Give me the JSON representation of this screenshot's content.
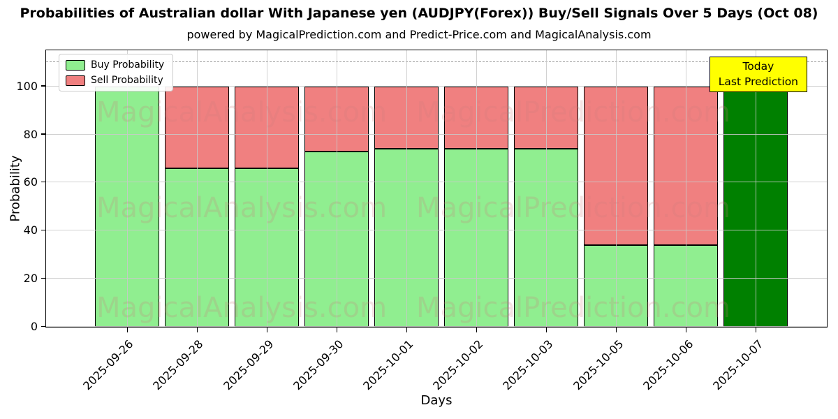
{
  "title": "Probabilities of Australian dollar With Japanese yen (AUDJPY(Forex)) Buy/Sell Signals Over 5 Days (Oct 08)",
  "subtitle": "powered by MagicalPrediction.com and Predict-Price.com and MagicalAnalysis.com",
  "xlabel": "Days",
  "ylabel": "Probability",
  "legend": [
    {
      "label": "Buy Probability",
      "color": "#90ee90"
    },
    {
      "label": "Sell Probability",
      "color": "#f08080"
    }
  ],
  "annotation": {
    "line1": "Today",
    "line2": "Last Prediction",
    "bg": "#ffff00"
  },
  "watermarks": {
    "left": "MagicalAnalysis.com",
    "right": "MagicalPrediction.com"
  },
  "chart_data": {
    "type": "bar",
    "stacked": true,
    "categories": [
      "2025-09-26",
      "2025-09-28",
      "2025-09-29",
      "2025-09-30",
      "2025-10-01",
      "2025-10-02",
      "2025-10-03",
      "2025-10-05",
      "2025-10-06",
      "2025-10-07"
    ],
    "series": [
      {
        "name": "Buy Probability",
        "color": "#90ee90",
        "values": [
          100,
          66,
          66,
          73,
          74,
          74,
          74,
          34,
          34,
          100
        ]
      },
      {
        "name": "Sell Probability",
        "color": "#f08080",
        "values": [
          0,
          34,
          34,
          27,
          26,
          26,
          26,
          66,
          66,
          0
        ]
      }
    ],
    "today_index": 9,
    "today_color": "#008000",
    "title": "Probabilities of Australian dollar With Japanese yen (AUDJPY(Forex)) Buy/Sell Signals Over 5 Days (Oct 08)",
    "xlabel": "Days",
    "ylabel": "Probability",
    "yticks": [
      0,
      20,
      40,
      60,
      80,
      100
    ],
    "ylim": [
      0,
      115
    ],
    "dashed_line_y": 110,
    "grid": true,
    "legend_position": "upper-left"
  }
}
